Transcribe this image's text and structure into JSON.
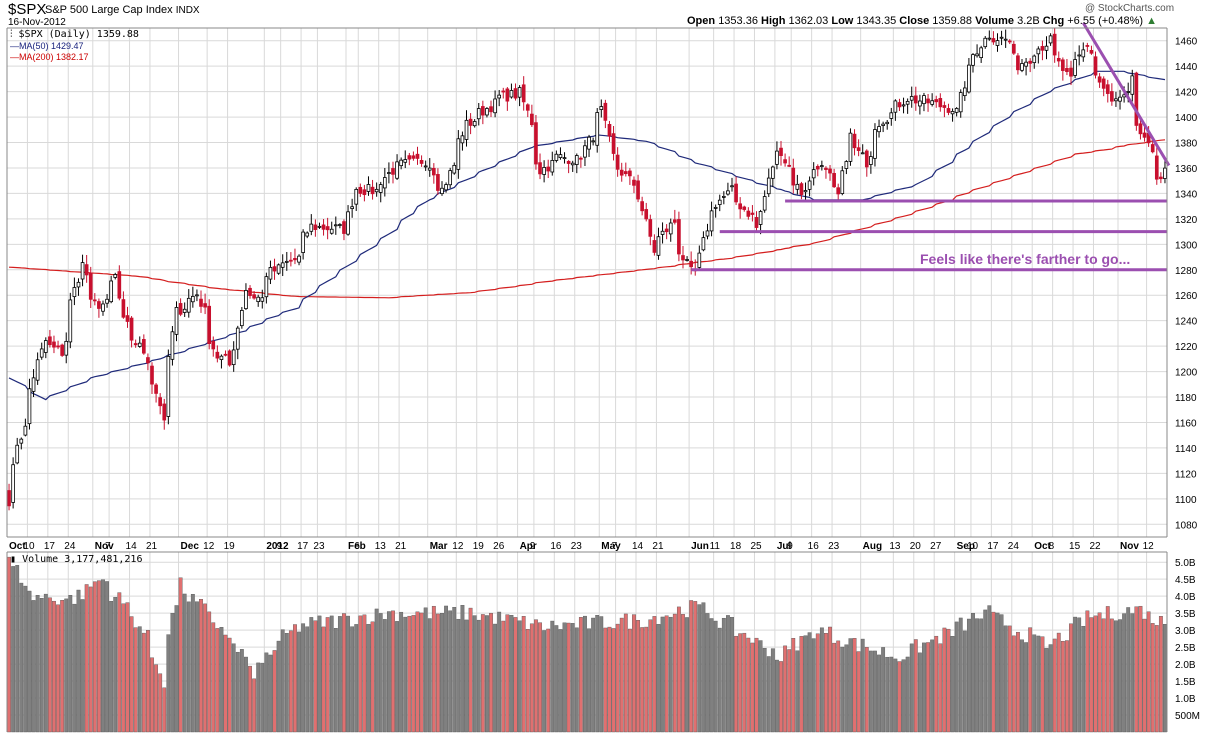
{
  "header": {
    "symbol": "$SPX",
    "name": "S&P 500 Large Cap Index",
    "exchange": "INDX",
    "date": "16-Nov-2012",
    "copyright": "@ StockCharts.com",
    "open_label": "Open",
    "open": "1353.36",
    "high_label": "High",
    "high": "1362.03",
    "low_label": "Low",
    "low": "1343.35",
    "close_label": "Close",
    "close": "1359.88",
    "volume_label": "Volume",
    "volume": "3.2B",
    "chg_label": "Chg",
    "chg": "+6.55 (+0.48%)"
  },
  "legend": [
    {
      "text": "$SPX (Daily) 1359.88",
      "color": "#000000"
    },
    {
      "text": "MA(50) 1429.47",
      "color": "#1a237e"
    },
    {
      "text": "MA(200) 1382.17",
      "color": "#cc0000"
    }
  ],
  "volume_legend": "Volume 3,177,481,216",
  "annotation": "Feels like there's farther to go...",
  "colors": {
    "up": "#000000",
    "down": "#c8102e",
    "ma50": "#1f2a7a",
    "ma200": "#d41e1e",
    "annotation": "#9b4fb0",
    "grid": "#d9d9d9",
    "vol_up": "#808080",
    "vol_down": "#e07070"
  },
  "chart_data": {
    "type": "candlestick",
    "ylim": [
      1070,
      1470
    ],
    "price_ticks": [
      "1460",
      "1440",
      "1420",
      "1400",
      "1380",
      "1360",
      "1340",
      "1320",
      "1300",
      "1280",
      "1260",
      "1240",
      "1220",
      "1200",
      "1180",
      "1160",
      "1140",
      "1120",
      "1100",
      "1080"
    ],
    "volume_ticks": [
      "5.0B",
      "4.5B",
      "4.0B",
      "3.5B",
      "3.0B",
      "2.5B",
      "2.0B",
      "1.5B",
      "1.0B",
      "500M"
    ],
    "x_ticks": [
      "Oct",
      "10",
      "17",
      "24",
      "Nov",
      "7",
      "14",
      "21",
      "Dec",
      "12",
      "19",
      "2012",
      "9",
      "17",
      "23",
      "Feb",
      "6",
      "13",
      "21",
      "Mar",
      "12",
      "19",
      "26",
      "Apr",
      "9",
      "16",
      "23",
      "May",
      "7",
      "14",
      "21",
      "Jun",
      "11",
      "18",
      "25",
      "Jul",
      "9",
      "16",
      "23",
      "Aug",
      "13",
      "20",
      "27",
      "Sep",
      "10",
      "17",
      "24",
      "Oct",
      "8",
      "15",
      "22",
      "Nov",
      "12"
    ],
    "close_anchors": [
      [
        "2011-10-03",
        1099
      ],
      [
        "2011-10-04",
        1123
      ],
      [
        "2011-10-05",
        1144
      ],
      [
        "2011-10-07",
        1155
      ],
      [
        "2011-10-12",
        1207
      ],
      [
        "2011-10-14",
        1224
      ],
      [
        "2011-10-20",
        1215
      ],
      [
        "2011-10-27",
        1284
      ],
      [
        "2011-10-31",
        1253
      ],
      [
        "2011-11-04",
        1253
      ],
      [
        "2011-11-08",
        1275
      ],
      [
        "2011-11-10",
        1239
      ],
      [
        "2011-11-17",
        1216
      ],
      [
        "2011-11-21",
        1192
      ],
      [
        "2011-11-25",
        1158
      ],
      [
        "2011-11-30",
        1247
      ],
      [
        "2011-12-07",
        1261
      ],
      [
        "2011-12-14",
        1212
      ],
      [
        "2011-12-19",
        1205
      ],
      [
        "2011-12-23",
        1265
      ],
      [
        "2011-12-30",
        1257
      ],
      [
        "2012-01-03",
        1277
      ],
      [
        "2012-01-13",
        1289
      ],
      [
        "2012-01-19",
        1314
      ],
      [
        "2012-01-31",
        1312
      ],
      [
        "2012-02-03",
        1344
      ],
      [
        "2012-02-10",
        1342
      ],
      [
        "2012-02-17",
        1361
      ],
      [
        "2012-02-29",
        1366
      ],
      [
        "2012-03-06",
        1343
      ],
      [
        "2012-03-14",
        1394
      ],
      [
        "2012-03-20",
        1405
      ],
      [
        "2012-03-26",
        1416
      ],
      [
        "2012-04-02",
        1419
      ],
      [
        "2012-04-10",
        1358
      ],
      [
        "2012-04-16",
        1369
      ],
      [
        "2012-04-23",
        1366
      ],
      [
        "2012-05-01",
        1405
      ],
      [
        "2012-05-04",
        1369
      ],
      [
        "2012-05-14",
        1338
      ],
      [
        "2012-05-18",
        1295
      ],
      [
        "2012-05-25",
        1318
      ],
      [
        "2012-06-01",
        1278
      ],
      [
        "2012-06-04",
        1278
      ],
      [
        "2012-06-08",
        1325
      ],
      [
        "2012-06-15",
        1342
      ],
      [
        "2012-06-21",
        1325
      ],
      [
        "2012-06-25",
        1313
      ],
      [
        "2012-06-29",
        1362
      ],
      [
        "2012-07-03",
        1374
      ],
      [
        "2012-07-11",
        1341
      ],
      [
        "2012-07-17",
        1363
      ],
      [
        "2012-07-24",
        1338
      ],
      [
        "2012-07-27",
        1385
      ],
      [
        "2012-08-02",
        1365
      ],
      [
        "2012-08-06",
        1394
      ],
      [
        "2012-08-16",
        1415
      ],
      [
        "2012-08-21",
        1413
      ],
      [
        "2012-08-28",
        1409
      ],
      [
        "2012-09-04",
        1404
      ],
      [
        "2012-09-07",
        1437
      ],
      [
        "2012-09-14",
        1465
      ],
      [
        "2012-09-21",
        1460
      ],
      [
        "2012-09-25",
        1441
      ],
      [
        "2012-10-05",
        1460
      ],
      [
        "2012-10-12",
        1428
      ],
      [
        "2012-10-18",
        1457
      ],
      [
        "2012-10-22",
        1433
      ],
      [
        "2012-10-26",
        1411
      ],
      [
        "2012-11-02",
        1414
      ],
      [
        "2012-11-05",
        1417
      ],
      [
        "2012-11-06",
        1428
      ],
      [
        "2012-11-07",
        1394
      ],
      [
        "2012-11-09",
        1380
      ],
      [
        "2012-11-13",
        1374
      ],
      [
        "2012-11-14",
        1355
      ],
      [
        "2012-11-15",
        1353
      ],
      [
        "2012-11-16",
        1359.88
      ]
    ],
    "ma50_anchors": [
      [
        "2011-10-03",
        1195
      ],
      [
        "2011-10-14",
        1178
      ],
      [
        "2011-11-01",
        1196
      ],
      [
        "2011-12-01",
        1215
      ],
      [
        "2011-12-23",
        1232
      ],
      [
        "2012-01-13",
        1250
      ],
      [
        "2012-02-06",
        1292
      ],
      [
        "2012-03-01",
        1335
      ],
      [
        "2012-03-20",
        1358
      ],
      [
        "2012-04-05",
        1376
      ],
      [
        "2012-04-30",
        1386
      ],
      [
        "2012-05-16",
        1381
      ],
      [
        "2012-06-04",
        1364
      ],
      [
        "2012-06-25",
        1348
      ],
      [
        "2012-07-16",
        1335
      ],
      [
        "2012-08-01",
        1335
      ],
      [
        "2012-08-20",
        1347
      ],
      [
        "2012-09-06",
        1374
      ],
      [
        "2012-09-21",
        1400
      ],
      [
        "2012-10-05",
        1420
      ],
      [
        "2012-10-22",
        1436
      ],
      [
        "2012-11-02",
        1436
      ],
      [
        "2012-11-16",
        1429.47
      ]
    ],
    "ma200_anchors": [
      [
        "2011-10-03",
        1282
      ],
      [
        "2011-11-15",
        1275
      ],
      [
        "2011-12-15",
        1265
      ],
      [
        "2012-01-13",
        1259
      ],
      [
        "2012-02-15",
        1258
      ],
      [
        "2012-03-15",
        1262
      ],
      [
        "2012-04-16",
        1272
      ],
      [
        "2012-05-15",
        1280
      ],
      [
        "2012-06-15",
        1289
      ],
      [
        "2012-07-16",
        1301
      ],
      [
        "2012-08-15",
        1322
      ],
      [
        "2012-09-14",
        1346
      ],
      [
        "2012-10-15",
        1371
      ],
      [
        "2012-11-16",
        1382.17
      ]
    ],
    "support_lines": [
      1334,
      1310,
      1280
    ],
    "volume_anchors": [
      [
        "2011-10-03",
        5.0
      ],
      [
        "2011-10-10",
        4.0
      ],
      [
        "2011-10-24",
        3.9
      ],
      [
        "2011-11-03",
        4.5
      ],
      [
        "2011-11-15",
        3.3
      ],
      [
        "2011-11-25",
        1.5
      ],
      [
        "2011-12-01",
        4.3
      ],
      [
        "2011-12-16",
        3.0
      ],
      [
        "2011-12-27",
        1.7
      ],
      [
        "2012-01-13",
        3.1
      ],
      [
        "2012-02-15",
        3.5
      ],
      [
        "2012-03-15",
        3.5
      ],
      [
        "2012-04-11",
        3.1
      ],
      [
        "2012-05-15",
        3.3
      ],
      [
        "2012-06-04",
        3.7
      ],
      [
        "2012-07-03",
        2.2
      ],
      [
        "2012-07-16",
        3.0
      ],
      [
        "2012-08-13",
        2.2
      ],
      [
        "2012-09-14",
        3.5
      ],
      [
        "2012-10-05",
        2.5
      ],
      [
        "2012-10-19",
        3.4
      ],
      [
        "2012-11-08",
        3.6
      ],
      [
        "2012-11-16",
        3.2
      ]
    ]
  }
}
